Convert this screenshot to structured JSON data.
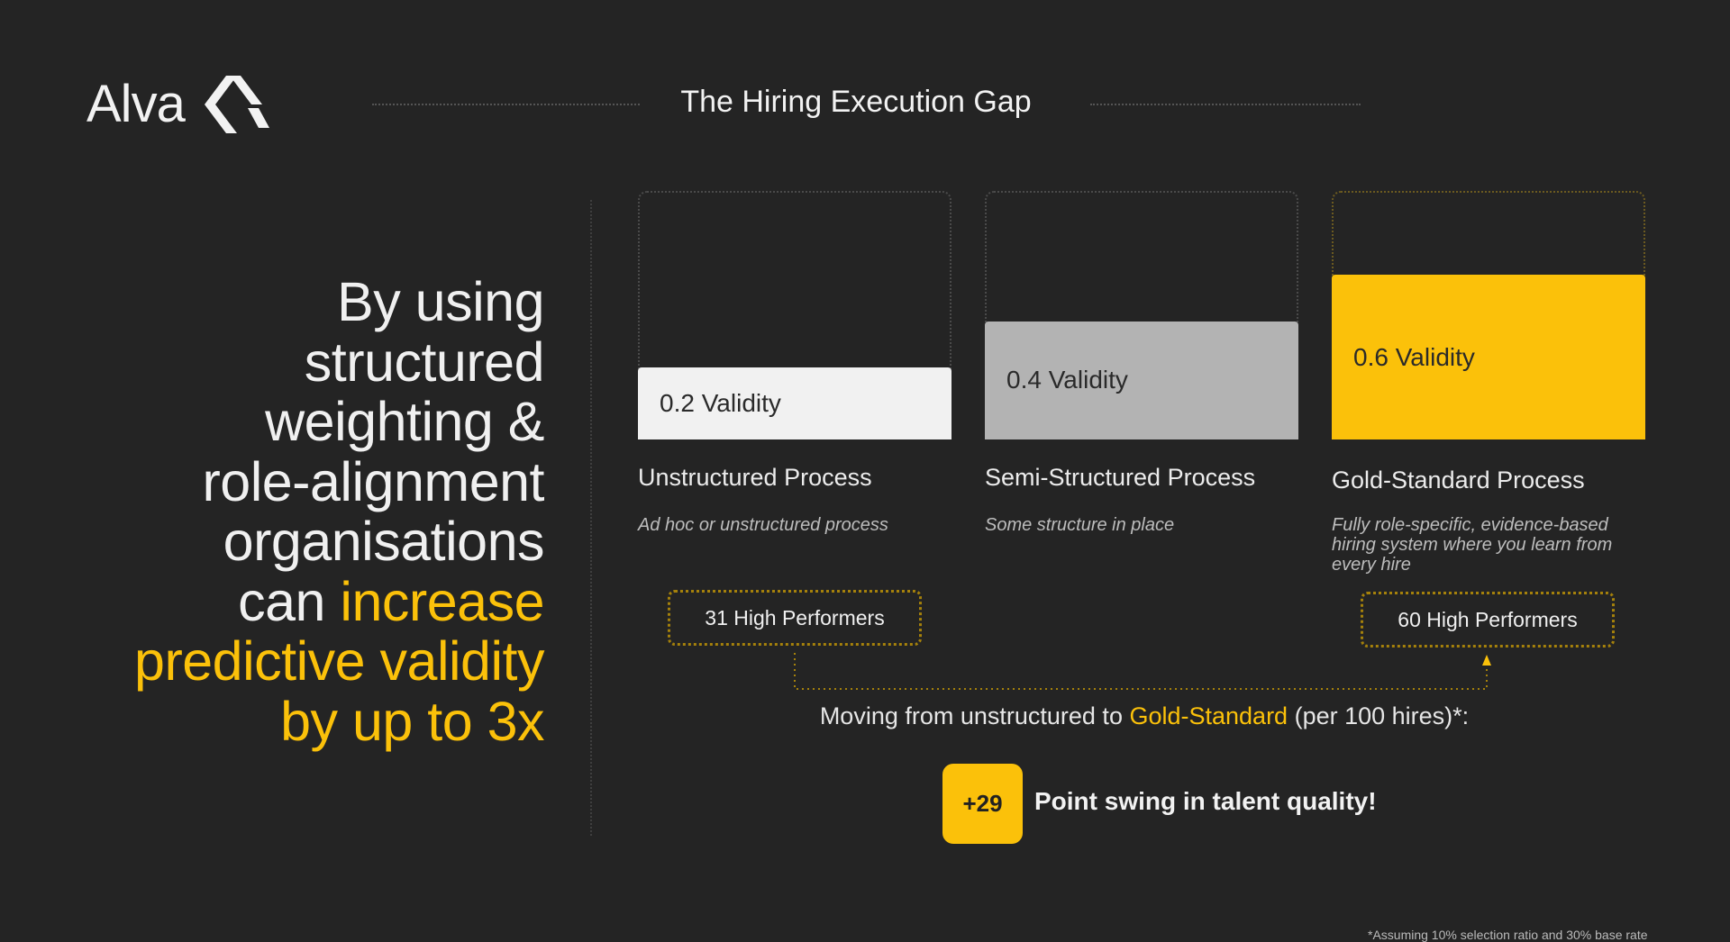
{
  "brand": {
    "logo_text": "Alva",
    "accent": "#fbc10a"
  },
  "header": {
    "title": "The Hiring Execution Gap"
  },
  "headline": {
    "plain": "By using structured weighting & role-alignment organisations can ",
    "highlight": "increase predictive validity by up to 3x",
    "lines_plain": [
      "By using",
      "structured",
      "weighting &",
      "role-alignment",
      "organisations",
      "can "
    ],
    "lines_highlight": [
      "increase",
      "predictive validity",
      "by up to 3x"
    ]
  },
  "processes": [
    {
      "validity_label": "0.2 Validity",
      "validity": 0.2,
      "title": "Unstructured Process",
      "description": "Ad hoc or unstructured process",
      "color": "#f1f1f1"
    },
    {
      "validity_label": "0.4 Validity",
      "validity": 0.4,
      "title": "Semi-Structured Process",
      "description": "Some structure in place",
      "color": "#b3b3b3"
    },
    {
      "validity_label": "0.6 Validity",
      "validity": 0.6,
      "title": "Gold-Standard Process",
      "description": "Fully role-specific, evidence-based hiring system where you learn from every hire",
      "color": "#fbc10a"
    }
  ],
  "performers": {
    "unstructured": "31 High Performers",
    "gold": "60 High Performers"
  },
  "summary": {
    "prefix": "Moving from unstructured to ",
    "highlight": "Gold-Standard",
    "suffix": " (per 100 hires)*:"
  },
  "swing": {
    "value": "+29",
    "text": "Point swing in talent quality!"
  },
  "footnote": "*Assuming 10% selection ratio and 30% base rate"
}
